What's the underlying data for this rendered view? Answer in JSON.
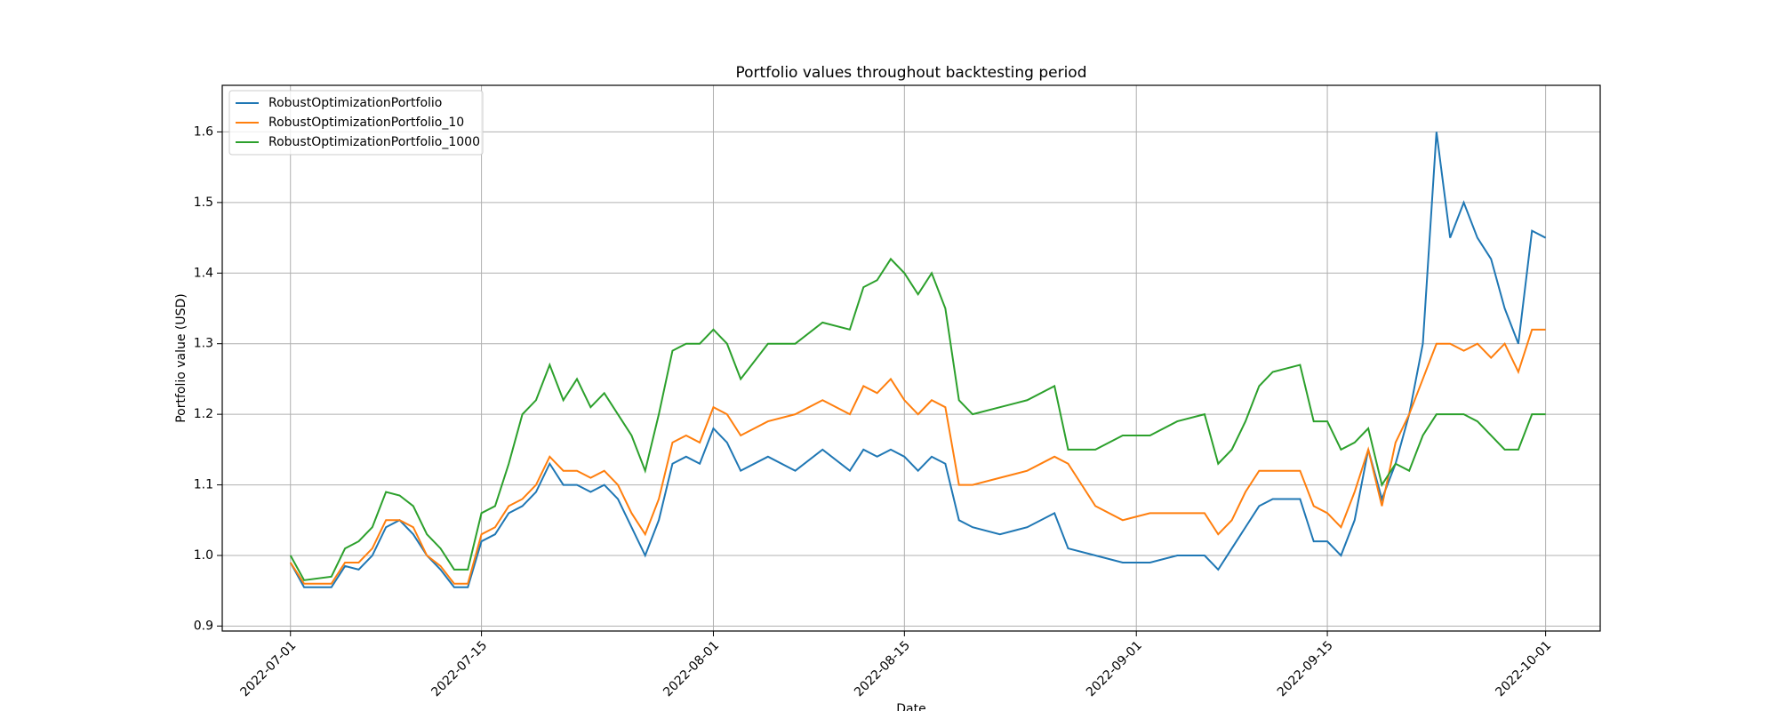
{
  "chart_data": {
    "type": "line",
    "title": "Portfolio values throughout backtesting period",
    "x_label": "Date",
    "y_label": "Portfolio value (USD)",
    "x": [
      "2022-07-01",
      "2022-07-02",
      "2022-07-04",
      "2022-07-05",
      "2022-07-06",
      "2022-07-07",
      "2022-07-08",
      "2022-07-09",
      "2022-07-10",
      "2022-07-11",
      "2022-07-12",
      "2022-07-13",
      "2022-07-14",
      "2022-07-15",
      "2022-07-16",
      "2022-07-17",
      "2022-07-18",
      "2022-07-19",
      "2022-07-20",
      "2022-07-21",
      "2022-07-22",
      "2022-07-23",
      "2022-07-24",
      "2022-07-25",
      "2022-07-26",
      "2022-07-27",
      "2022-07-28",
      "2022-07-29",
      "2022-07-30",
      "2022-07-31",
      "2022-08-01",
      "2022-08-02",
      "2022-08-03",
      "2022-08-05",
      "2022-08-07",
      "2022-08-09",
      "2022-08-11",
      "2022-08-12",
      "2022-08-13",
      "2022-08-14",
      "2022-08-15",
      "2022-08-16",
      "2022-08-17",
      "2022-08-18",
      "2022-08-19",
      "2022-08-20",
      "2022-08-22",
      "2022-08-24",
      "2022-08-26",
      "2022-08-27",
      "2022-08-29",
      "2022-08-31",
      "2022-09-02",
      "2022-09-04",
      "2022-09-06",
      "2022-09-07",
      "2022-09-08",
      "2022-09-09",
      "2022-09-10",
      "2022-09-11",
      "2022-09-13",
      "2022-09-14",
      "2022-09-15",
      "2022-09-16",
      "2022-09-17",
      "2022-09-18",
      "2022-09-19",
      "2022-09-20",
      "2022-09-21",
      "2022-09-22",
      "2022-09-23",
      "2022-09-24",
      "2022-09-25",
      "2022-09-26",
      "2022-09-27",
      "2022-09-28",
      "2022-09-29",
      "2022-09-30",
      "2022-10-01"
    ],
    "series": [
      {
        "name": "RobustOptimizationPortfolio",
        "color": "#1f77b4",
        "values": [
          0.99,
          0.955,
          0.955,
          0.985,
          0.98,
          1.0,
          1.04,
          1.05,
          1.03,
          1.0,
          0.98,
          0.955,
          0.955,
          1.02,
          1.03,
          1.06,
          1.07,
          1.09,
          1.13,
          1.1,
          1.1,
          1.09,
          1.1,
          1.08,
          1.04,
          1.0,
          1.05,
          1.13,
          1.14,
          1.13,
          1.18,
          1.16,
          1.12,
          1.14,
          1.12,
          1.15,
          1.12,
          1.15,
          1.14,
          1.15,
          1.14,
          1.12,
          1.14,
          1.13,
          1.05,
          1.04,
          1.03,
          1.04,
          1.06,
          1.01,
          1.0,
          0.99,
          0.99,
          1.0,
          1.0,
          0.98,
          1.01,
          1.04,
          1.07,
          1.08,
          1.08,
          1.02,
          1.02,
          1.0,
          1.05,
          1.15,
          1.08,
          1.13,
          1.2,
          1.3,
          1.6,
          1.45,
          1.5,
          1.45,
          1.42,
          1.35,
          1.3,
          1.46,
          1.45
        ]
      },
      {
        "name": "RobustOptimizationPortfolio_10",
        "color": "#ff7f0e",
        "values": [
          0.99,
          0.96,
          0.96,
          0.99,
          0.99,
          1.01,
          1.05,
          1.05,
          1.04,
          1.0,
          0.985,
          0.96,
          0.96,
          1.03,
          1.04,
          1.07,
          1.08,
          1.1,
          1.14,
          1.12,
          1.12,
          1.11,
          1.12,
          1.1,
          1.06,
          1.03,
          1.08,
          1.16,
          1.17,
          1.16,
          1.21,
          1.2,
          1.17,
          1.19,
          1.2,
          1.22,
          1.2,
          1.24,
          1.23,
          1.25,
          1.22,
          1.2,
          1.22,
          1.21,
          1.1,
          1.1,
          1.11,
          1.12,
          1.14,
          1.13,
          1.07,
          1.05,
          1.06,
          1.06,
          1.06,
          1.03,
          1.05,
          1.09,
          1.12,
          1.12,
          1.12,
          1.07,
          1.06,
          1.04,
          1.09,
          1.15,
          1.07,
          1.16,
          1.2,
          1.25,
          1.3,
          1.3,
          1.29,
          1.3,
          1.28,
          1.3,
          1.26,
          1.32,
          1.32
        ]
      },
      {
        "name": "RobustOptimizationPortfolio_1000",
        "color": "#2ca02c",
        "values": [
          1.0,
          0.965,
          0.97,
          1.01,
          1.02,
          1.04,
          1.09,
          1.085,
          1.07,
          1.03,
          1.01,
          0.98,
          0.98,
          1.06,
          1.07,
          1.13,
          1.2,
          1.22,
          1.27,
          1.22,
          1.25,
          1.21,
          1.23,
          1.2,
          1.17,
          1.12,
          1.2,
          1.29,
          1.3,
          1.3,
          1.32,
          1.3,
          1.25,
          1.3,
          1.3,
          1.33,
          1.32,
          1.38,
          1.39,
          1.42,
          1.4,
          1.37,
          1.4,
          1.35,
          1.22,
          1.2,
          1.21,
          1.22,
          1.24,
          1.15,
          1.15,
          1.17,
          1.17,
          1.19,
          1.2,
          1.13,
          1.15,
          1.19,
          1.24,
          1.26,
          1.27,
          1.19,
          1.19,
          1.15,
          1.16,
          1.18,
          1.1,
          1.13,
          1.12,
          1.17,
          1.2,
          1.2,
          1.2,
          1.19,
          1.17,
          1.15,
          1.15,
          1.2,
          1.2
        ]
      }
    ],
    "xlim": [
      "2022-06-26",
      "2022-10-05"
    ],
    "xticks": [
      "2022-07-01",
      "2022-07-15",
      "2022-08-01",
      "2022-08-15",
      "2022-09-01",
      "2022-09-15",
      "2022-10-01"
    ],
    "ylim": [
      0.893,
      1.666
    ],
    "yticks": [
      0.9,
      {
        "value": 1,
        "label": "1.0"
      },
      1.1,
      1.2,
      1.3,
      1.4,
      1.5,
      1.6
    ],
    "grid": true,
    "legend": "upper left"
  }
}
